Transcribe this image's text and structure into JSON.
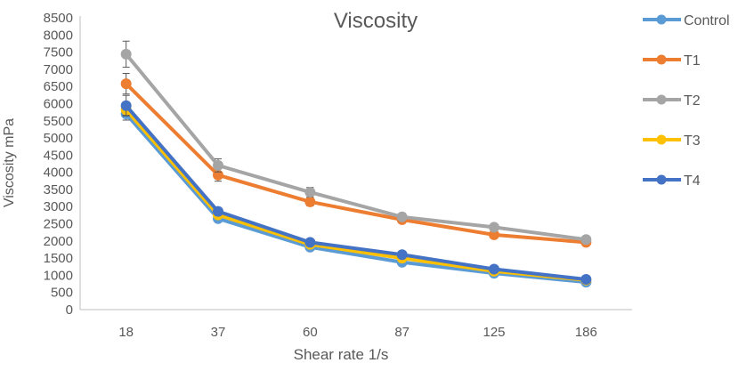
{
  "chart_data": {
    "type": "line",
    "title": "Viscosity",
    "xlabel": "Shear rate 1/s",
    "ylabel": "Viscosity mPa",
    "categories": [
      "18",
      "37",
      "60",
      "87",
      "125",
      "186"
    ],
    "ylim": [
      0,
      8500
    ],
    "yticks": [
      0,
      500,
      1000,
      1500,
      2000,
      2500,
      3000,
      3500,
      4000,
      4500,
      5000,
      5500,
      6000,
      6500,
      7000,
      7500,
      8000,
      8500
    ],
    "grid": false,
    "legend_position": "right",
    "series": [
      {
        "name": "Control",
        "color": "#5B9BD5",
        "values": [
          5700,
          2650,
          1820,
          1380,
          1060,
          800
        ],
        "errors": [
          180,
          80,
          60,
          40,
          30,
          20
        ]
      },
      {
        "name": "T1",
        "color": "#ED7D31",
        "values": [
          6580,
          3920,
          3140,
          2620,
          2180,
          1960
        ],
        "errors": [
          300,
          180,
          120,
          80,
          60,
          50
        ]
      },
      {
        "name": "T2",
        "color": "#A5A5A5",
        "values": [
          7440,
          4200,
          3420,
          2700,
          2400,
          2040
        ],
        "errors": [
          380,
          190,
          140,
          110,
          90,
          60
        ]
      },
      {
        "name": "T3",
        "color": "#FFC000",
        "values": [
          5820,
          2760,
          1900,
          1500,
          1120,
          860
        ],
        "errors": [
          160,
          80,
          60,
          40,
          30,
          20
        ]
      },
      {
        "name": "T4",
        "color": "#4472C4",
        "values": [
          5940,
          2860,
          1960,
          1600,
          1180,
          880
        ],
        "errors": [
          300,
          110,
          60,
          40,
          30,
          20
        ]
      }
    ]
  }
}
